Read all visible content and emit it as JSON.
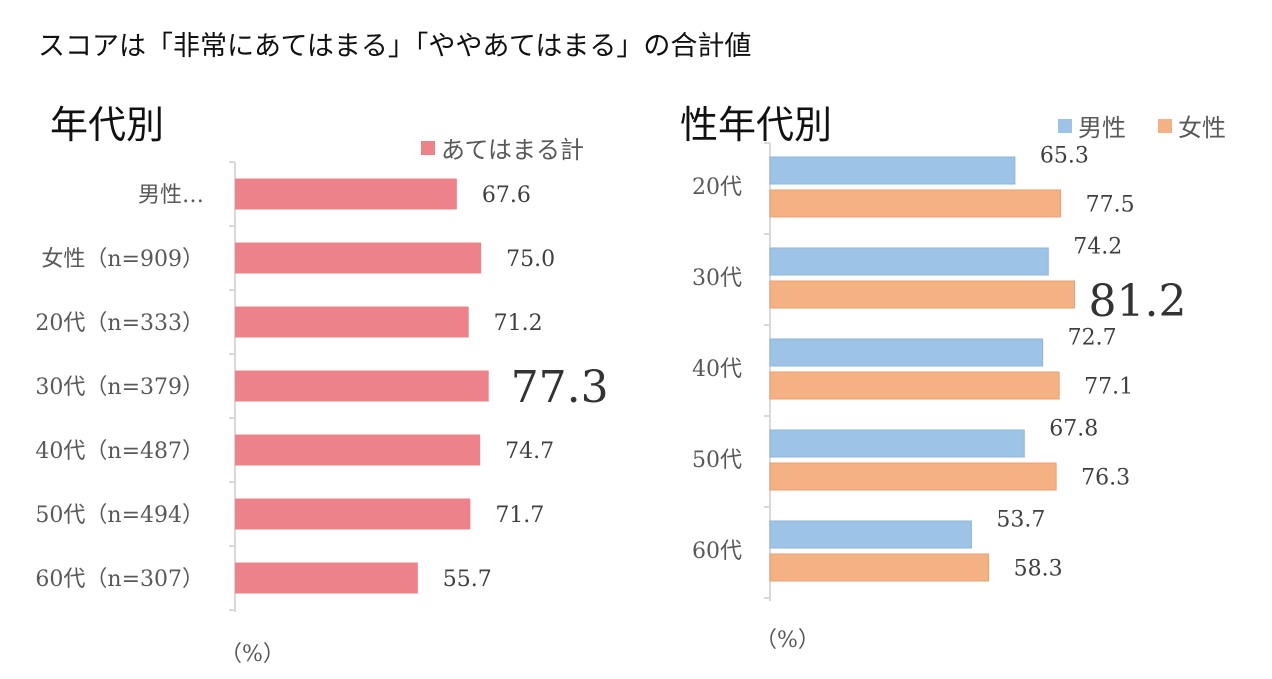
{
  "title": "スコアは「非常にあてはまる」「ややあてはまる」の合計値",
  "colors": {
    "pink": "#EE828B",
    "blue": "#9DC3E6",
    "orange": "#F4B183",
    "axis": "#D9D9D9",
    "text": "#404040"
  },
  "chart_data": [
    {
      "type": "bar",
      "orientation": "horizontal",
      "title": "年代別",
      "legend": [
        "あてはまる計"
      ],
      "legend_position": "top-right",
      "unit_label": "（%）",
      "categories": [
        "男性…",
        "女性（n=909）",
        "20代（n=333）",
        "30代（n=379）",
        "40代（n=487）",
        "50代（n=494）",
        "60代（n=307）"
      ],
      "series": [
        {
          "name": "あてはまる計",
          "values": [
            67.6,
            75.0,
            71.2,
            77.3,
            74.7,
            71.7,
            55.7
          ]
        }
      ],
      "data_labels": [
        "67.6",
        "75.0",
        "71.2",
        "77.3",
        "74.7",
        "71.7",
        "55.7"
      ],
      "highlight_index": 3,
      "xlim": [
        0,
        100
      ],
      "grid": false
    },
    {
      "type": "bar",
      "orientation": "horizontal",
      "title": "性年代別",
      "legend": [
        "男性",
        "女性"
      ],
      "legend_position": "top-right",
      "unit_label": "（%）",
      "categories": [
        "20代",
        "30代",
        "40代",
        "50代",
        "60代"
      ],
      "series": [
        {
          "name": "男性",
          "values": [
            65.3,
            74.2,
            72.7,
            67.8,
            53.7
          ],
          "labels": [
            "65.3",
            "74.2",
            "72.7",
            "67.8",
            "53.7"
          ]
        },
        {
          "name": "女性",
          "values": [
            77.5,
            81.2,
            77.1,
            76.3,
            58.3
          ],
          "labels": [
            "77.5",
            "81.2",
            "77.1",
            "76.3",
            "58.3"
          ]
        }
      ],
      "highlight": {
        "series": 1,
        "index": 1
      },
      "xlim": [
        0,
        100
      ],
      "grid": false
    }
  ]
}
